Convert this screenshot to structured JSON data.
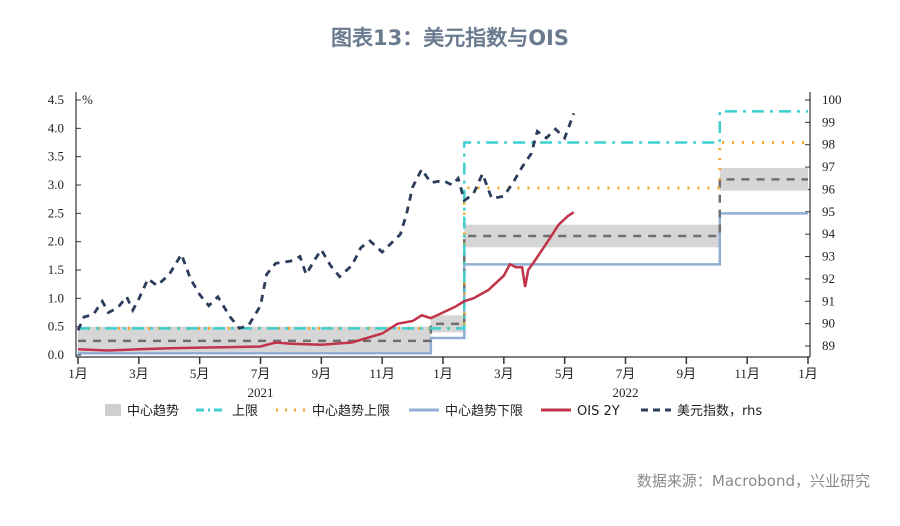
{
  "title": "图表13：美元指数与OIS",
  "source": "数据来源：Macrobond，兴业研究",
  "chart_data": {
    "type": "line",
    "unit_left": "%",
    "x_unit": "months since Jan 2021",
    "xlim": [
      0,
      24
    ],
    "ylim_left": [
      0,
      4.5
    ],
    "ylim_right": [
      89,
      100
    ],
    "left_ticks": [
      "0.0",
      "0.5",
      "1.0",
      "1.5",
      "2.0",
      "2.5",
      "3.0",
      "3.5",
      "4.0",
      "4.5"
    ],
    "right_ticks": [
      "89",
      "90",
      "91",
      "92",
      "93",
      "94",
      "95",
      "96",
      "97",
      "98",
      "99",
      "100"
    ],
    "x_ticks": [
      {
        "m": 0,
        "label": "1月"
      },
      {
        "m": 2,
        "label": "3月"
      },
      {
        "m": 4,
        "label": "5月"
      },
      {
        "m": 6,
        "label": "7月"
      },
      {
        "m": 8,
        "label": "9月"
      },
      {
        "m": 10,
        "label": "11月"
      },
      {
        "m": 12,
        "label": "1月"
      },
      {
        "m": 14,
        "label": "3月"
      },
      {
        "m": 16,
        "label": "5月"
      },
      {
        "m": 18,
        "label": "7月"
      },
      {
        "m": 20,
        "label": "9月"
      },
      {
        "m": 22,
        "label": "11月"
      },
      {
        "m": 24,
        "label": "1月"
      }
    ],
    "years": [
      {
        "m": 6,
        "label": "2021"
      },
      {
        "m": 18,
        "label": "2022"
      }
    ],
    "periods": [
      {
        "start": 0,
        "end": 11.6,
        "band": [
          0.04,
          0.5
        ],
        "center": 0.25,
        "upper": 0.47,
        "upper_trend": 0.47,
        "lower_trend": 0.03
      },
      {
        "start": 11.6,
        "end": 12.7,
        "band": [
          0.4,
          0.7
        ],
        "center": 0.55,
        "upper": 0.47,
        "upper_trend": 0.47,
        "lower_trend": 0.3
      },
      {
        "start": 12.7,
        "end": 21.1,
        "band": [
          1.9,
          2.3
        ],
        "center": 2.1,
        "upper": 3.75,
        "upper_trend": 2.95,
        "lower_trend": 1.6
      },
      {
        "start": 21.1,
        "end": 24,
        "band": [
          2.9,
          3.3
        ],
        "center": 3.1,
        "upper": 4.3,
        "upper_trend": 3.75,
        "lower_trend": 2.5
      }
    ],
    "series": [
      {
        "name": "OIS 2Y",
        "axis": "left",
        "color": "#c0334a",
        "points": [
          [
            0,
            0.1
          ],
          [
            1,
            0.08
          ],
          [
            2,
            0.1
          ],
          [
            3,
            0.12
          ],
          [
            4,
            0.13
          ],
          [
            5,
            0.14
          ],
          [
            6,
            0.15
          ],
          [
            6.5,
            0.22
          ],
          [
            7,
            0.2
          ],
          [
            8,
            0.18
          ],
          [
            9,
            0.22
          ],
          [
            9.5,
            0.3
          ],
          [
            10,
            0.38
          ],
          [
            10.5,
            0.55
          ],
          [
            11,
            0.6
          ],
          [
            11.3,
            0.7
          ],
          [
            11.6,
            0.65
          ],
          [
            12,
            0.75
          ],
          [
            12.4,
            0.85
          ],
          [
            12.7,
            0.95
          ],
          [
            13,
            1.0
          ],
          [
            13.5,
            1.15
          ],
          [
            14,
            1.4
          ],
          [
            14.2,
            1.6
          ],
          [
            14.4,
            1.55
          ],
          [
            14.6,
            1.55
          ],
          [
            14.7,
            1.2
          ],
          [
            14.8,
            1.5
          ],
          [
            15,
            1.65
          ],
          [
            15.5,
            2.05
          ],
          [
            15.8,
            2.3
          ],
          [
            16.1,
            2.45
          ],
          [
            16.3,
            2.52
          ]
        ]
      },
      {
        "name": "美元指数, rhs",
        "axis": "right",
        "color": "#2c3d5c",
        "points": [
          [
            0,
            89.7
          ],
          [
            0.2,
            90.3
          ],
          [
            0.5,
            90.4
          ],
          [
            0.8,
            91.0
          ],
          [
            1,
            90.5
          ],
          [
            1.3,
            90.7
          ],
          [
            1.6,
            91.2
          ],
          [
            1.8,
            90.6
          ],
          [
            2,
            91.1
          ],
          [
            2.3,
            92.0
          ],
          [
            2.6,
            91.7
          ],
          [
            3,
            92.2
          ],
          [
            3.4,
            93.1
          ],
          [
            3.7,
            92.0
          ],
          [
            4,
            91.3
          ],
          [
            4.3,
            90.8
          ],
          [
            4.6,
            91.2
          ],
          [
            5,
            90.3
          ],
          [
            5.3,
            89.8
          ],
          [
            5.6,
            89.9
          ],
          [
            6,
            90.8
          ],
          [
            6.2,
            92.2
          ],
          [
            6.5,
            92.7
          ],
          [
            7,
            92.8
          ],
          [
            7.3,
            93.0
          ],
          [
            7.5,
            92.2
          ],
          [
            7.8,
            92.9
          ],
          [
            8,
            93.3
          ],
          [
            8.3,
            92.6
          ],
          [
            8.6,
            92.1
          ],
          [
            9,
            92.6
          ],
          [
            9.3,
            93.4
          ],
          [
            9.6,
            93.7
          ],
          [
            10,
            93.2
          ],
          [
            10.3,
            93.6
          ],
          [
            10.6,
            94.0
          ],
          [
            10.8,
            94.9
          ],
          [
            11,
            96.1
          ],
          [
            11.3,
            96.9
          ],
          [
            11.6,
            96.3
          ],
          [
            12,
            96.4
          ],
          [
            12.3,
            96.2
          ],
          [
            12.5,
            96.5
          ],
          [
            12.7,
            95.5
          ],
          [
            13,
            95.8
          ],
          [
            13.3,
            96.7
          ],
          [
            13.6,
            95.6
          ],
          [
            14,
            95.7
          ],
          [
            14.3,
            96.3
          ],
          [
            14.6,
            97.0
          ],
          [
            14.9,
            97.6
          ],
          [
            15.1,
            98.6
          ],
          [
            15.4,
            98.3
          ],
          [
            15.7,
            98.7
          ],
          [
            16,
            98.3
          ],
          [
            16.3,
            99.4
          ]
        ]
      }
    ],
    "legend": [
      {
        "key": "band",
        "label": "中心趋势",
        "color": "#cccccc"
      },
      {
        "key": "upper",
        "label": "上限",
        "color": "#3dd0d0"
      },
      {
        "key": "upper_trend",
        "label": "中心趋势上限",
        "color": "#f0a830"
      },
      {
        "key": "lower_trend",
        "label": "中心趋势下限",
        "color": "#8fb0d4"
      },
      {
        "key": "ois",
        "label": "OIS 2Y",
        "color": "#c0334a"
      },
      {
        "key": "dxy",
        "label": "美元指数，rhs",
        "color": "#2c3d5c"
      }
    ],
    "colors": {
      "band": "#d6d6d6",
      "center": "#6f6f6f",
      "upper": "#3dd0d0",
      "upper_trend": "#f0a830",
      "lower_trend": "#8fb0d4"
    }
  }
}
